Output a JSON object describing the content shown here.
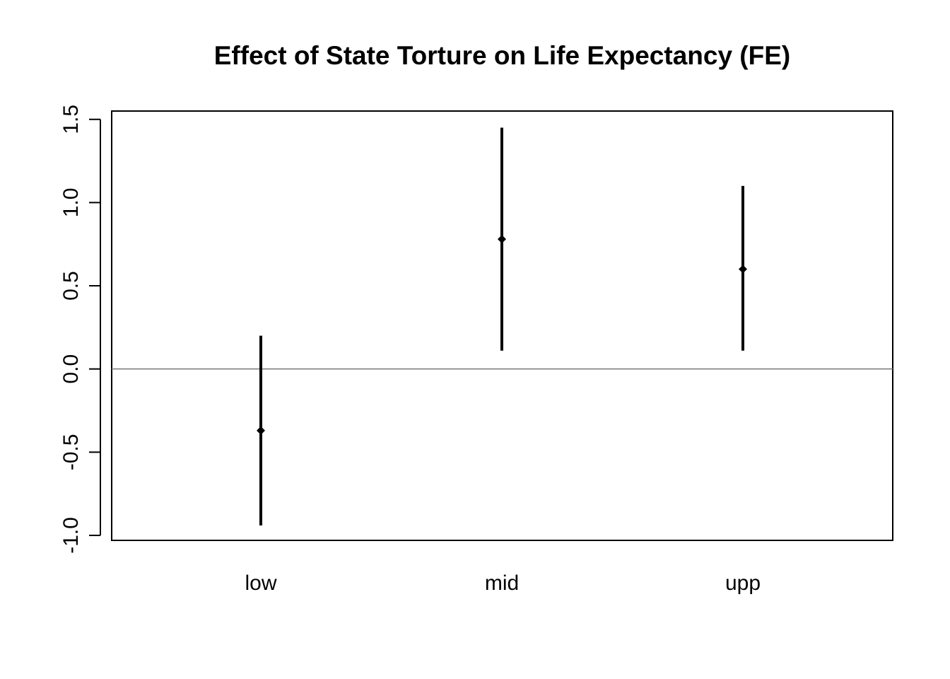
{
  "chart_data": {
    "type": "errorbar",
    "title": "Effect of State Torture on Life Expectancy (FE)",
    "xlabel": "",
    "ylabel": "",
    "categories": [
      "low",
      "mid",
      "upp"
    ],
    "estimates": [
      -0.37,
      0.78,
      0.6
    ],
    "lower": [
      -0.94,
      0.11,
      0.11
    ],
    "upper": [
      0.2,
      1.45,
      1.1
    ],
    "ylim": [
      -1.03,
      1.55
    ],
    "y_ticks": [
      -1.0,
      -0.5,
      0.0,
      0.5,
      1.0,
      1.5
    ],
    "y_tick_labels": [
      "-1.0",
      "-0.5",
      "0.0",
      "0.5",
      "1.0",
      "1.5"
    ],
    "reference_line": 0.0,
    "grid": false,
    "legend": "none",
    "colors": {
      "marks": "#000000",
      "reference_line": "#777777",
      "axes": "#000000"
    }
  }
}
